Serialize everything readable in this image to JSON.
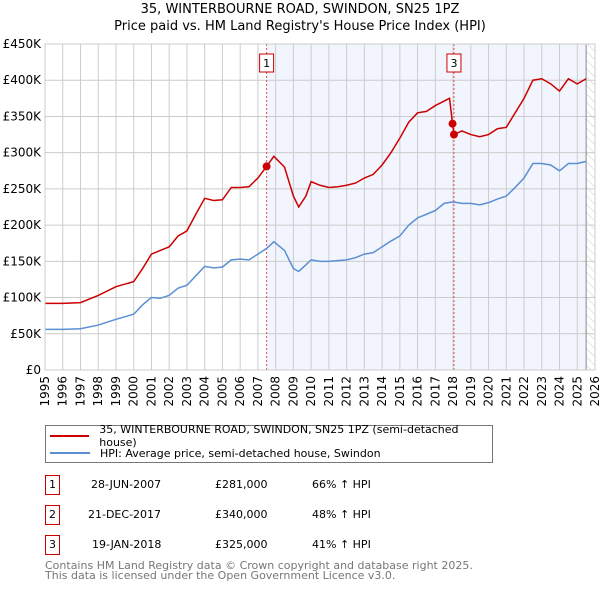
{
  "chart_data": {
    "type": "line",
    "title": "35, WINTERBOURNE ROAD, SWINDON, SN25 1PZ",
    "subtitle": "Price paid vs. HM Land Registry's House Price Index (HPI)",
    "xlim": [
      1995,
      2026
    ],
    "ylim": [
      0,
      450000
    ],
    "x_ticks": [
      "1995",
      "1996",
      "1997",
      "1998",
      "1999",
      "2000",
      "2001",
      "2002",
      "2003",
      "2004",
      "2005",
      "2006",
      "2007",
      "2008",
      "2009",
      "2010",
      "2011",
      "2012",
      "2013",
      "2014",
      "2015",
      "2016",
      "2017",
      "2018",
      "2019",
      "2020",
      "2021",
      "2022",
      "2023",
      "2024",
      "2025",
      "2026"
    ],
    "y_ticks": [
      {
        "v": 0,
        "label": "£0"
      },
      {
        "v": 50000,
        "label": "£50K"
      },
      {
        "v": 100000,
        "label": "£100K"
      },
      {
        "v": 150000,
        "label": "£150K"
      },
      {
        "v": 200000,
        "label": "£200K"
      },
      {
        "v": 250000,
        "label": "£250K"
      },
      {
        "v": 300000,
        "label": "£300K"
      },
      {
        "v": 350000,
        "label": "£350K"
      },
      {
        "v": 400000,
        "label": "£400K"
      },
      {
        "v": 450000,
        "label": "£450K"
      }
    ],
    "grid": true,
    "series": [
      {
        "name": "35, WINTERBOURNE ROAD, SWINDON, SN25 1PZ (semi-detached house)",
        "color": "#cc0000",
        "x": [
          1995,
          1996,
          1997,
          1998,
          1999,
          2000,
          2000.5,
          2001,
          2001.5,
          2002,
          2002.5,
          2003,
          2003.5,
          2004,
          2004.5,
          2005,
          2005.5,
          2006,
          2006.5,
          2007,
          2007.49,
          2007.9,
          2008.5,
          2009,
          2009.3,
          2009.7,
          2010,
          2010.5,
          2011,
          2011.5,
          2012,
          2012.5,
          2013,
          2013.5,
          2014,
          2014.5,
          2015,
          2015.5,
          2016,
          2016.5,
          2017,
          2017.8,
          2017.97,
          2018.05,
          2018.5,
          2019,
          2019.5,
          2020,
          2020.5,
          2021,
          2021.5,
          2022,
          2022.5,
          2023,
          2023.5,
          2024,
          2024.5,
          2025,
          2025.5
        ],
        "y": [
          92000,
          92000,
          93000,
          103000,
          115000,
          122000,
          140000,
          160000,
          165000,
          170000,
          185000,
          192000,
          215000,
          237000,
          234000,
          235000,
          252000,
          252000,
          253000,
          265000,
          281000,
          295000,
          280000,
          240000,
          225000,
          240000,
          260000,
          255000,
          252000,
          253000,
          255000,
          258000,
          265000,
          270000,
          283000,
          300000,
          320000,
          342000,
          355000,
          357000,
          365000,
          375000,
          340000,
          325000,
          330000,
          325000,
          322000,
          325000,
          333000,
          335000,
          355000,
          375000,
          400000,
          402000,
          395000,
          385000,
          402000,
          395000,
          402000
        ]
      },
      {
        "name": "HPI: Average price, semi-detached house, Swindon",
        "color": "#5b8fd4",
        "x": [
          1995,
          1996,
          1997,
          1998,
          1999,
          2000,
          2000.5,
          2001,
          2001.5,
          2002,
          2002.5,
          2003,
          2003.5,
          2004,
          2004.5,
          2005,
          2005.5,
          2006,
          2006.5,
          2007,
          2007.5,
          2007.9,
          2008.5,
          2009,
          2009.3,
          2009.7,
          2010,
          2010.5,
          2011,
          2011.5,
          2012,
          2012.5,
          2013,
          2013.5,
          2014,
          2014.5,
          2015,
          2015.5,
          2016,
          2016.5,
          2017,
          2017.5,
          2018,
          2018.5,
          2019,
          2019.5,
          2020,
          2020.5,
          2021,
          2021.5,
          2022,
          2022.5,
          2023,
          2023.5,
          2024,
          2024.5,
          2025,
          2025.5
        ],
        "y": [
          56000,
          56000,
          57000,
          62000,
          70000,
          77000,
          90000,
          100000,
          99000,
          103000,
          113000,
          117000,
          130000,
          143000,
          141000,
          142000,
          152000,
          153000,
          152000,
          160000,
          168000,
          177000,
          165000,
          140000,
          136000,
          145000,
          152000,
          150000,
          150000,
          151000,
          152000,
          155000,
          160000,
          162000,
          170000,
          178000,
          185000,
          200000,
          210000,
          215000,
          220000,
          230000,
          232000,
          230000,
          230000,
          228000,
          231000,
          236000,
          240000,
          252000,
          265000,
          285000,
          285000,
          283000,
          275000,
          285000,
          285000,
          288000
        ]
      }
    ],
    "sales": [
      {
        "id": "1",
        "x": 2007.49,
        "y": 281000,
        "date": "28-JUN-2007",
        "price": "£281,000",
        "hpi": "66% ↑ HPI",
        "show_label": true
      },
      {
        "id": "2",
        "x": 2017.97,
        "y": 340000,
        "date": "21-DEC-2017",
        "price": "£340,000",
        "hpi": "48% ↑ HPI",
        "show_label": false
      },
      {
        "id": "3",
        "x": 2018.05,
        "y": 325000,
        "date": "19-JAN-2018",
        "price": "£325,000",
        "hpi": "41% ↑ HPI",
        "show_label": true
      }
    ],
    "shaded_from": 2007.49,
    "hatched_from": 2025.5,
    "legend_placement": "bottom"
  },
  "footer": {
    "line1": "Contains HM Land Registry data © Crown copyright and database right 2025.",
    "line2": "This data is licensed under the Open Government Licence v3.0."
  }
}
